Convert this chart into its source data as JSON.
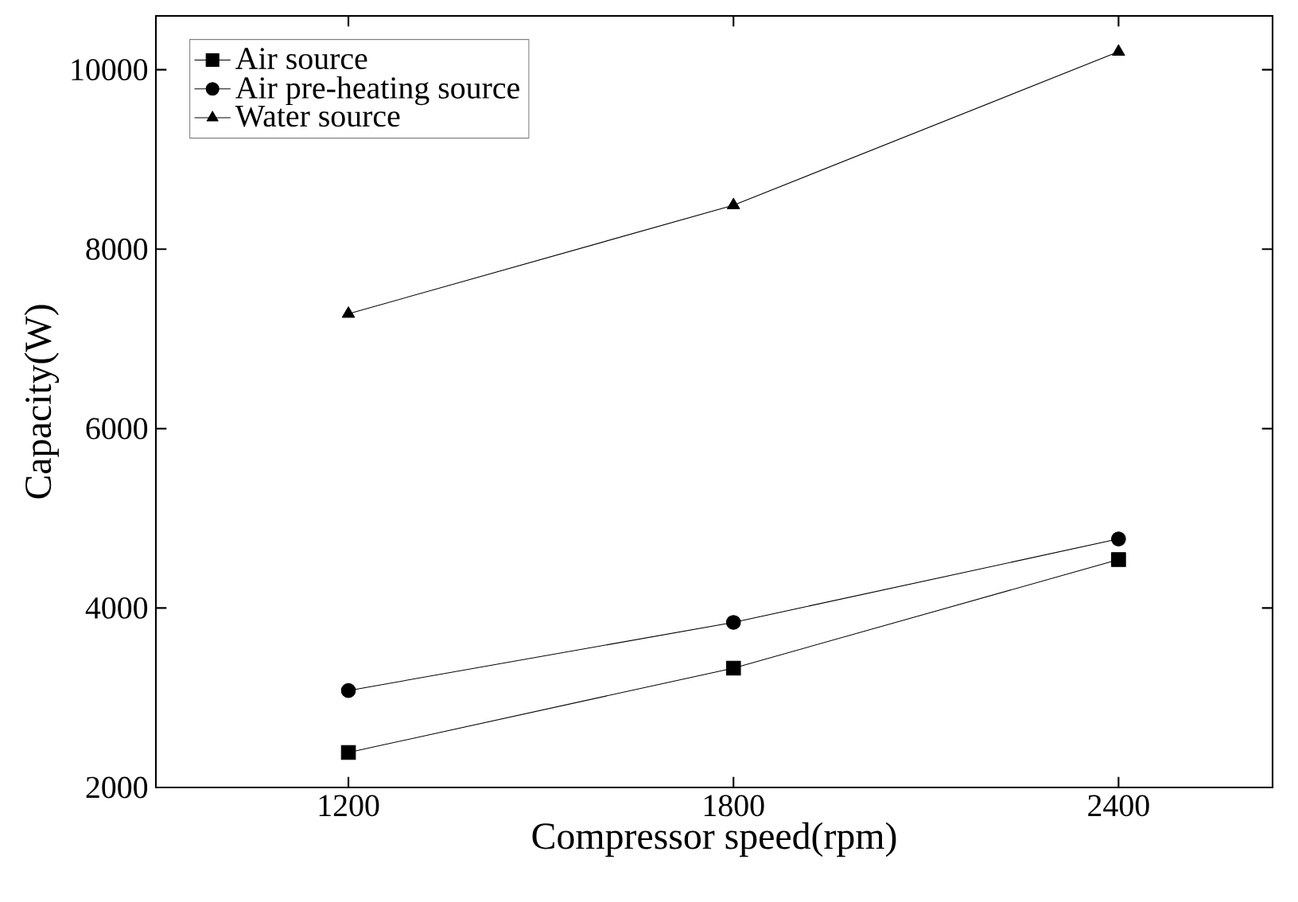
{
  "chart_data": {
    "type": "line",
    "xlabel": "Compressor speed(rpm)",
    "ylabel": "Capacity(W)",
    "x": [
      1200,
      1800,
      2400
    ],
    "series": [
      {
        "name": "Air source",
        "color": "#000000",
        "marker": "square",
        "values": [
          2390,
          3330,
          4540
        ]
      },
      {
        "name": "Air pre-heating source",
        "color": "#000000",
        "marker": "circle",
        "values": [
          3080,
          3840,
          4770
        ]
      },
      {
        "name": "Water source",
        "color": "#000000",
        "marker": "triangle",
        "values": [
          7280,
          8490,
          10200
        ]
      }
    ],
    "xlim": [
      900,
      2640
    ],
    "xticks": [
      1200,
      1800,
      2400
    ],
    "ylim": [
      2000,
      10600
    ],
    "yticks": [
      2000,
      4000,
      6000,
      8000,
      10000
    ],
    "grid": false,
    "legend": "top left",
    "line_style": "solid"
  }
}
